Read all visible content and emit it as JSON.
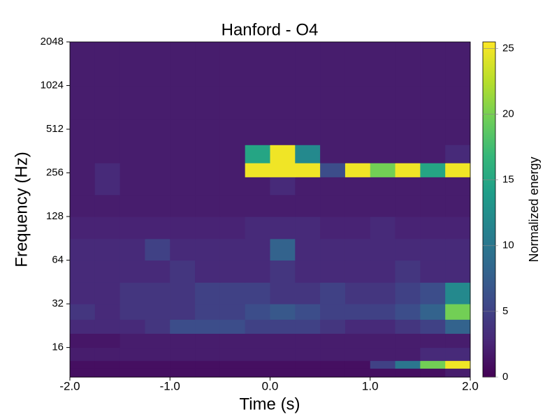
{
  "chart_data": {
    "type": "heatmap",
    "title": "Hanford - O4",
    "xlabel": "Time (s)",
    "ylabel": "Frequency (Hz)",
    "xlim": [
      -2,
      2
    ],
    "xticks": [
      {
        "value": -2,
        "label": "-2.0"
      },
      {
        "value": -1,
        "label": "-1.0"
      },
      {
        "value": 0,
        "label": "0.0"
      },
      {
        "value": 1,
        "label": "1.0"
      },
      {
        "value": 2,
        "label": "2.0"
      }
    ],
    "ylim": [
      10,
      2048
    ],
    "yscale": "log",
    "yticks": [
      16,
      32,
      64,
      128,
      256,
      512,
      1024,
      2048
    ],
    "xbins": [
      -2,
      -1.75,
      -1.5,
      -1.25,
      -1,
      -0.75,
      -0.5,
      -0.25,
      0,
      0.25,
      0.5,
      0.75,
      1,
      1.25,
      1.5,
      1.75,
      2
    ],
    "ybins": [
      10,
      11.5,
      13,
      16,
      20,
      25,
      32,
      45,
      64,
      90,
      128,
      181,
      240,
      300,
      400,
      600,
      1024,
      2048
    ],
    "values": [
      [
        1,
        1,
        1,
        1,
        1,
        1,
        1,
        1,
        1,
        1,
        1,
        1,
        1,
        1,
        1,
        2
      ],
      [
        1,
        1,
        1,
        1,
        1,
        1,
        1,
        1,
        1,
        1,
        1,
        1,
        5,
        10,
        20,
        25
      ],
      [
        2,
        2,
        2,
        2,
        2,
        2,
        2,
        2,
        2,
        2,
        2,
        2,
        2,
        2,
        3,
        3
      ],
      [
        1.5,
        1.5,
        2,
        2,
        2,
        2,
        2,
        2,
        2,
        2,
        2,
        2,
        2,
        2,
        2,
        2
      ],
      [
        3,
        3,
        3,
        4,
        6,
        6,
        6,
        5,
        5,
        5,
        4,
        3,
        3,
        4,
        5,
        8
      ],
      [
        4,
        3,
        4,
        4,
        4,
        5,
        5,
        6,
        7,
        6,
        5,
        5,
        5,
        6,
        8,
        20
      ],
      [
        3,
        3,
        4,
        4,
        4,
        5,
        5,
        5,
        4,
        4,
        5,
        4,
        4,
        5,
        6,
        12
      ],
      [
        3,
        3,
        3,
        3,
        4,
        3,
        3,
        3,
        4,
        3,
        3,
        3,
        3,
        4,
        3,
        3
      ],
      [
        3,
        3,
        3,
        5,
        3,
        3,
        3,
        3,
        8,
        3,
        3,
        3,
        3,
        3,
        3,
        3
      ],
      [
        2.5,
        2.5,
        2.5,
        2.5,
        2.5,
        2.5,
        2.5,
        3,
        3,
        3,
        2.5,
        2.5,
        3,
        2.5,
        2.5,
        2.5
      ],
      [
        2,
        2,
        2,
        2,
        2,
        2,
        2,
        2,
        2,
        2,
        2,
        2,
        2,
        2,
        2,
        2
      ],
      [
        2,
        3,
        2,
        2,
        2,
        2,
        2,
        2,
        3,
        2,
        2,
        2,
        2,
        2,
        2,
        2
      ],
      [
        2,
        3,
        2,
        2,
        2,
        2,
        2,
        25,
        25,
        25,
        6,
        25,
        20,
        25,
        15,
        25
      ],
      [
        2,
        2,
        2,
        2,
        2,
        2,
        2,
        15,
        25,
        12,
        2,
        2,
        2,
        2,
        2,
        3
      ],
      [
        2,
        2,
        2,
        2,
        2,
        2,
        2,
        2,
        2,
        2,
        2,
        2,
        2,
        2,
        2,
        2
      ],
      [
        2,
        2,
        2,
        2,
        2,
        2,
        2,
        2,
        2,
        2,
        2,
        2,
        2,
        2,
        2,
        2
      ],
      [
        2,
        2,
        2,
        2,
        2,
        2,
        2,
        2,
        2,
        2,
        2,
        2,
        2,
        2,
        2,
        2
      ]
    ],
    "colormap": "viridis",
    "clim": [
      0,
      25.5
    ],
    "cticks": [
      0,
      5,
      10,
      15,
      20,
      25
    ],
    "colorbar_label": "Normalized energy"
  }
}
